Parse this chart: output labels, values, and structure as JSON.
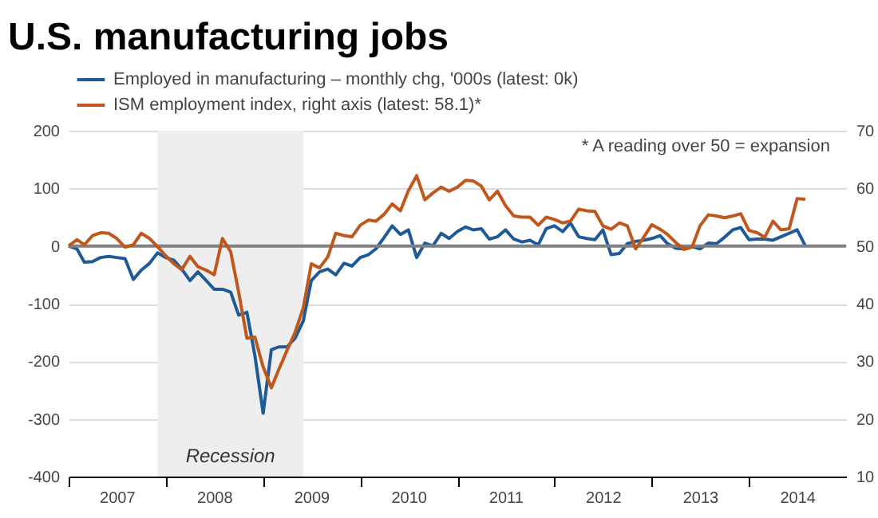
{
  "chart_data": {
    "type": "line",
    "title": "U.S. manufacturing jobs",
    "x": [
      "2007-01",
      "2007-02",
      "2007-03",
      "2007-04",
      "2007-05",
      "2007-06",
      "2007-07",
      "2007-08",
      "2007-09",
      "2007-10",
      "2007-11",
      "2007-12",
      "2008-01",
      "2008-02",
      "2008-03",
      "2008-04",
      "2008-05",
      "2008-06",
      "2008-07",
      "2008-08",
      "2008-09",
      "2008-10",
      "2008-11",
      "2008-12",
      "2009-01",
      "2009-02",
      "2009-03",
      "2009-04",
      "2009-05",
      "2009-06",
      "2009-07",
      "2009-08",
      "2009-09",
      "2009-10",
      "2009-11",
      "2009-12",
      "2010-01",
      "2010-02",
      "2010-03",
      "2010-04",
      "2010-05",
      "2010-06",
      "2010-07",
      "2010-08",
      "2010-09",
      "2010-10",
      "2010-11",
      "2010-12",
      "2011-01",
      "2011-02",
      "2011-03",
      "2011-04",
      "2011-05",
      "2011-06",
      "2011-07",
      "2011-08",
      "2011-09",
      "2011-10",
      "2011-11",
      "2011-12",
      "2012-01",
      "2012-02",
      "2012-03",
      "2012-04",
      "2012-05",
      "2012-06",
      "2012-07",
      "2012-08",
      "2012-09",
      "2012-10",
      "2012-11",
      "2012-12",
      "2013-01",
      "2013-02",
      "2013-03",
      "2013-04",
      "2013-05",
      "2013-06",
      "2013-07",
      "2013-08",
      "2013-09",
      "2013-10",
      "2013-11",
      "2013-12",
      "2014-01",
      "2014-02",
      "2014-03",
      "2014-04",
      "2014-05",
      "2014-06",
      "2014-07",
      "2014-08"
    ],
    "series": [
      {
        "name": "Employed in manufacturing – monthly chg, '000s (latest: 0k)",
        "color": "#1f5a96",
        "values": [
          0,
          -5,
          -28,
          -27,
          -20,
          -18,
          -20,
          -22,
          -58,
          -42,
          -30,
          -12,
          -20,
          -25,
          -40,
          -60,
          -45,
          -60,
          -75,
          -75,
          -80,
          -120,
          -115,
          -190,
          -290,
          -180,
          -175,
          -175,
          -160,
          -130,
          -60,
          -45,
          -40,
          -50,
          -30,
          -35,
          -20,
          -15,
          -5,
          15,
          35,
          20,
          28,
          -20,
          5,
          0,
          22,
          13,
          25,
          33,
          28,
          30,
          12,
          16,
          28,
          12,
          7,
          10,
          2,
          30,
          35,
          25,
          40,
          16,
          13,
          11,
          28,
          -15,
          -13,
          4,
          8,
          10,
          13,
          18,
          4,
          -4,
          -5,
          -1,
          -5,
          5,
          4,
          15,
          28,
          32,
          11,
          12,
          12,
          10,
          16,
          22,
          28,
          0
        ]
      },
      {
        "name": "ISM employment index, right axis (latest: 58.1)*",
        "color": "#c0581d",
        "axis": "y2",
        "values": [
          50,
          51.1,
          50.2,
          51.8,
          52.3,
          52.2,
          51.3,
          49.8,
          50.2,
          52.2,
          51.3,
          49.9,
          48.3,
          46.9,
          45.9,
          48.2,
          46.4,
          45.8,
          45,
          51.3,
          49,
          42,
          34,
          34.2,
          29,
          25.4,
          28.6,
          31.9,
          35,
          39.3,
          46.9,
          46.2,
          48.1,
          52.2,
          51.8,
          51.6,
          53.6,
          54.5,
          54.3,
          55.5,
          57.3,
          56.1,
          59.6,
          62.2,
          58,
          59.2,
          60.2,
          59.5,
          60.2,
          61.4,
          61.3,
          60.4,
          58,
          59.5,
          57,
          55.2,
          55,
          55,
          53.6,
          55,
          54.6,
          54,
          54.3,
          56.4,
          56.1,
          56,
          53.5,
          52.9,
          54,
          53.5,
          49.5,
          51.5,
          53.7,
          52.9,
          52,
          50.6,
          49.4,
          49.8,
          53.5,
          55.4,
          55.2,
          54.9,
          55.2,
          55.6,
          52.7,
          52.3,
          51.5,
          54.3,
          52.8,
          53,
          58.2,
          58.1
        ]
      }
    ],
    "xlim": [
      "2007-01",
      "2015-01"
    ],
    "xticks": [
      {
        "value": "2007",
        "label": null
      },
      {
        "value": "2007-07",
        "label": "2007"
      },
      {
        "value": "2008",
        "label": null
      },
      {
        "value": "2008-07",
        "label": "2008"
      },
      {
        "value": "2009",
        "label": null
      },
      {
        "value": "2009-07",
        "label": "2009"
      },
      {
        "value": "2010",
        "label": null
      },
      {
        "value": "2010-07",
        "label": "2010"
      },
      {
        "value": "2011",
        "label": null
      },
      {
        "value": "2011-07",
        "label": "2011"
      },
      {
        "value": "2012",
        "label": null
      },
      {
        "value": "2012-07",
        "label": "2012"
      },
      {
        "value": "2013",
        "label": null
      },
      {
        "value": "2013-07",
        "label": "2013"
      },
      {
        "value": "2014",
        "label": null
      },
      {
        "value": "2014-07",
        "label": "2014"
      }
    ],
    "ylim": [
      -400,
      200
    ],
    "yticks": [
      -400,
      -300,
      -200,
      -100,
      0,
      100,
      200
    ],
    "y2lim": [
      10,
      70
    ],
    "y2ticks": [
      10,
      20,
      30,
      40,
      50,
      60,
      70
    ],
    "grid": "y",
    "legend": "top left",
    "ref_lines": [
      {
        "axis": "y",
        "value": 0,
        "color": "#808080"
      }
    ],
    "bands": [
      {
        "axis": "x",
        "from": "2007-12",
        "to": "2009-06",
        "label": "Recession",
        "color": "#eeeeee"
      }
    ],
    "annotations": [
      "* A reading over 50 = expansion"
    ]
  }
}
